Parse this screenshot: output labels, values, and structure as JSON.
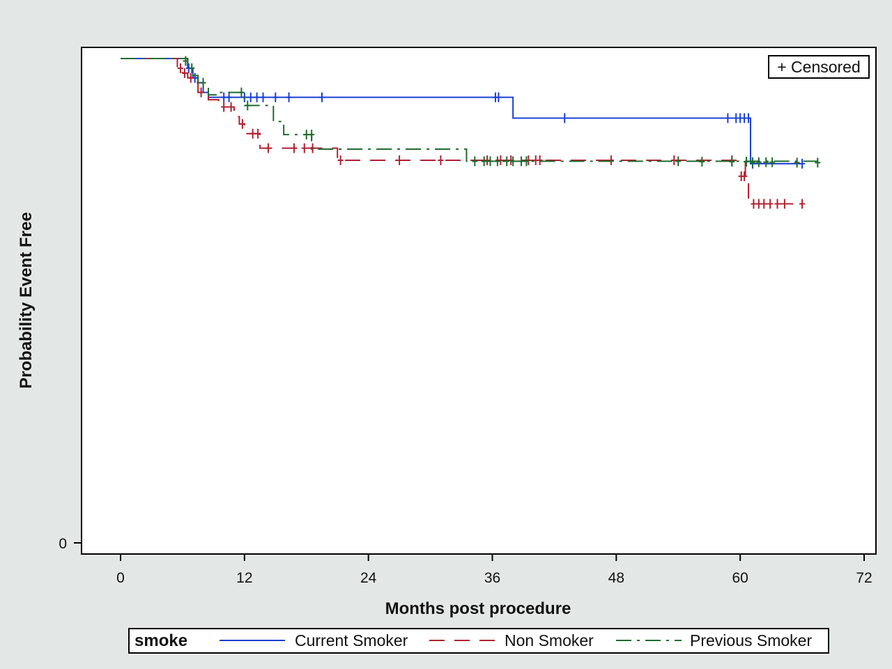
{
  "chart_data": {
    "type": "line",
    "step": true,
    "xlabel": "Months post procedure",
    "ylabel": "Probability Event Free",
    "xlim": [
      0,
      72
    ],
    "ylim": [
      0,
      1
    ],
    "xticks": [
      0,
      12,
      24,
      36,
      48,
      60,
      72
    ],
    "yticks": [
      0
    ],
    "censor_legend": "+ Censored",
    "legend_title": "smoke",
    "legend_position": "bottom",
    "grid": false,
    "series": [
      {
        "name": "Current Smoker",
        "color": "#1a3fd4",
        "dash": "solid",
        "x": [
          0,
          6.5,
          7.0,
          7.5,
          8.0,
          8.5,
          38.0,
          61.0,
          66.0
        ],
        "y": [
          1.0,
          0.98,
          0.96,
          0.95,
          0.93,
          0.92,
          0.877,
          0.783,
          0.783
        ],
        "censored": [
          {
            "x": 6.6,
            "y": 0.98
          },
          {
            "x": 7.2,
            "y": 0.96
          },
          {
            "x": 10.0,
            "y": 0.92
          },
          {
            "x": 10.5,
            "y": 0.92
          },
          {
            "x": 12.0,
            "y": 0.92
          },
          {
            "x": 12.6,
            "y": 0.92
          },
          {
            "x": 13.2,
            "y": 0.92
          },
          {
            "x": 13.8,
            "y": 0.92
          },
          {
            "x": 15.0,
            "y": 0.92
          },
          {
            "x": 16.3,
            "y": 0.92
          },
          {
            "x": 19.5,
            "y": 0.92
          },
          {
            "x": 36.3,
            "y": 0.92
          },
          {
            "x": 36.6,
            "y": 0.92
          },
          {
            "x": 43.0,
            "y": 0.877
          },
          {
            "x": 58.8,
            "y": 0.877
          },
          {
            "x": 59.6,
            "y": 0.877
          },
          {
            "x": 60.0,
            "y": 0.877
          },
          {
            "x": 60.4,
            "y": 0.877
          },
          {
            "x": 60.8,
            "y": 0.877
          },
          {
            "x": 61.2,
            "y": 0.783
          },
          {
            "x": 66.0,
            "y": 0.783
          }
        ]
      },
      {
        "name": "Non Smoker",
        "color": "#b22030",
        "dash": "22,14",
        "x": [
          0,
          5.5,
          6.0,
          6.5,
          7.0,
          7.5,
          8.5,
          9.5,
          11.0,
          11.5,
          12.0,
          13.5,
          21.0,
          60.5,
          60.8,
          66.0
        ],
        "y": [
          1.0,
          0.98,
          0.97,
          0.96,
          0.95,
          0.93,
          0.915,
          0.9,
          0.88,
          0.865,
          0.845,
          0.815,
          0.79,
          0.757,
          0.7,
          0.7
        ],
        "censored": [
          {
            "x": 5.8,
            "y": 0.98
          },
          {
            "x": 6.2,
            "y": 0.97
          },
          {
            "x": 6.8,
            "y": 0.96
          },
          {
            "x": 7.8,
            "y": 0.93
          },
          {
            "x": 10.0,
            "y": 0.9
          },
          {
            "x": 10.7,
            "y": 0.9
          },
          {
            "x": 11.8,
            "y": 0.865
          },
          {
            "x": 12.8,
            "y": 0.845
          },
          {
            "x": 13.3,
            "y": 0.845
          },
          {
            "x": 14.3,
            "y": 0.815
          },
          {
            "x": 16.8,
            "y": 0.815
          },
          {
            "x": 17.8,
            "y": 0.815
          },
          {
            "x": 18.6,
            "y": 0.815
          },
          {
            "x": 21.3,
            "y": 0.79
          },
          {
            "x": 27.0,
            "y": 0.79
          },
          {
            "x": 31.0,
            "y": 0.79
          },
          {
            "x": 35.5,
            "y": 0.79
          },
          {
            "x": 36.8,
            "y": 0.79
          },
          {
            "x": 37.8,
            "y": 0.79
          },
          {
            "x": 39.5,
            "y": 0.79
          },
          {
            "x": 40.2,
            "y": 0.79
          },
          {
            "x": 40.6,
            "y": 0.79
          },
          {
            "x": 47.5,
            "y": 0.79
          },
          {
            "x": 53.6,
            "y": 0.79
          },
          {
            "x": 59.2,
            "y": 0.79
          },
          {
            "x": 60.1,
            "y": 0.757
          },
          {
            "x": 60.4,
            "y": 0.757
          },
          {
            "x": 61.3,
            "y": 0.7
          },
          {
            "x": 61.8,
            "y": 0.7
          },
          {
            "x": 62.3,
            "y": 0.7
          },
          {
            "x": 62.9,
            "y": 0.7
          },
          {
            "x": 63.6,
            "y": 0.7
          },
          {
            "x": 64.3,
            "y": 0.7
          },
          {
            "x": 66.0,
            "y": 0.7
          }
        ]
      },
      {
        "name": "Previous Smoker",
        "color": "#1f6b2e",
        "dash": "22,8,4,8",
        "x": [
          0,
          6.5,
          7.0,
          7.5,
          8.0,
          8.5,
          9.5,
          12.0,
          14.8,
          15.8,
          18.5,
          33.5,
          67.5
        ],
        "y": [
          1.0,
          0.98,
          0.965,
          0.95,
          0.94,
          0.925,
          0.93,
          0.903,
          0.87,
          0.843,
          0.813,
          0.788,
          0.785
        ],
        "censored": [
          {
            "x": 6.3,
            "y": 0.995
          },
          {
            "x": 6.9,
            "y": 0.98
          },
          {
            "x": 8.0,
            "y": 0.95
          },
          {
            "x": 11.7,
            "y": 0.93
          },
          {
            "x": 12.3,
            "y": 0.903
          },
          {
            "x": 18.0,
            "y": 0.843
          },
          {
            "x": 18.5,
            "y": 0.843
          },
          {
            "x": 34.3,
            "y": 0.788
          },
          {
            "x": 35.2,
            "y": 0.788
          },
          {
            "x": 35.8,
            "y": 0.788
          },
          {
            "x": 36.5,
            "y": 0.788
          },
          {
            "x": 37.4,
            "y": 0.788
          },
          {
            "x": 38.0,
            "y": 0.788
          },
          {
            "x": 38.8,
            "y": 0.788
          },
          {
            "x": 39.3,
            "y": 0.788
          },
          {
            "x": 54.0,
            "y": 0.788
          },
          {
            "x": 56.3,
            "y": 0.787
          },
          {
            "x": 59.2,
            "y": 0.787
          },
          {
            "x": 60.6,
            "y": 0.787
          },
          {
            "x": 61.2,
            "y": 0.786
          },
          {
            "x": 61.8,
            "y": 0.786
          },
          {
            "x": 62.5,
            "y": 0.786
          },
          {
            "x": 63.1,
            "y": 0.786
          },
          {
            "x": 65.5,
            "y": 0.785
          },
          {
            "x": 67.5,
            "y": 0.785
          }
        ]
      }
    ]
  }
}
